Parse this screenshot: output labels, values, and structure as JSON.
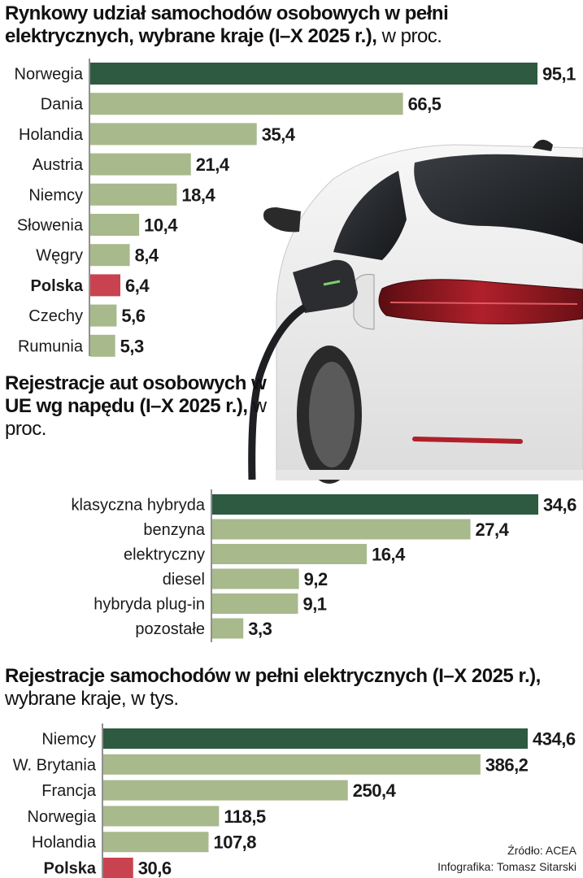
{
  "colors": {
    "highlight_green": "#2d5a40",
    "bar_green": "#a8b98c",
    "highlight_red": "#c8434f"
  },
  "chart1": {
    "title_bold": "Rynkowy udział samochodów osobowych w pełni elektrycznych, wybrane kraje (I–X 2025 r.),",
    "title_normal": " w proc."
  },
  "chart2": {
    "title_bold": "Rejestracje aut osobowych w UE wg napędu (I–X 2025 r.),",
    "title_normal": " w proc."
  },
  "chart3": {
    "title_bold": "Rejestracje samochodów w pełni elektrycznych (I–X 2025 r.),",
    "title_normal": " wybrane kraje, w tys."
  },
  "source": {
    "line1": "Źródło: ACEA",
    "line2": "Infografika: Tomasz Sitarski"
  },
  "illustration": {
    "icon": "electric-car-charging-icon"
  },
  "chart_data": [
    {
      "type": "bar",
      "orientation": "horizontal",
      "categories": [
        "Norwegia",
        "Dania",
        "Holandia",
        "Austria",
        "Niemcy",
        "Słowenia",
        "Węgry",
        "Polska",
        "Czechy",
        "Rumunia"
      ],
      "values": [
        95.1,
        66.5,
        35.4,
        21.4,
        18.4,
        10.4,
        8.4,
        6.4,
        5.6,
        5.3
      ],
      "value_labels": [
        "95,1",
        "66,5",
        "35,4",
        "21,4",
        "18,4",
        "10,4",
        "8,4",
        "6,4",
        "5,6",
        "5,3"
      ],
      "highlight": {
        "Norwegia": "top",
        "Polska": "poland"
      },
      "xlim": [
        0,
        95.1
      ]
    },
    {
      "type": "bar",
      "orientation": "horizontal",
      "categories": [
        "klasyczna hybryda",
        "benzyna",
        "elektryczny",
        "diesel",
        "hybryda plug-in",
        "pozostałe"
      ],
      "values": [
        34.6,
        27.4,
        16.4,
        9.2,
        9.1,
        3.3
      ],
      "value_labels": [
        "34,6",
        "27,4",
        "16,4",
        "9,2",
        "9,1",
        "3,3"
      ],
      "highlight": {
        "klasyczna hybryda": "top"
      },
      "xlim": [
        0,
        34.6
      ]
    },
    {
      "type": "bar",
      "orientation": "horizontal",
      "categories": [
        "Niemcy",
        "W. Brytania",
        "Francja",
        "Norwegia",
        "Holandia",
        "Polska"
      ],
      "values": [
        434.6,
        386.2,
        250.4,
        118.5,
        107.8,
        30.6
      ],
      "value_labels": [
        "434,6",
        "386,2",
        "250,4",
        "118,5",
        "107,8",
        "30,6"
      ],
      "highlight": {
        "Niemcy": "top",
        "Polska": "poland"
      },
      "xlim": [
        0,
        434.6
      ]
    }
  ]
}
